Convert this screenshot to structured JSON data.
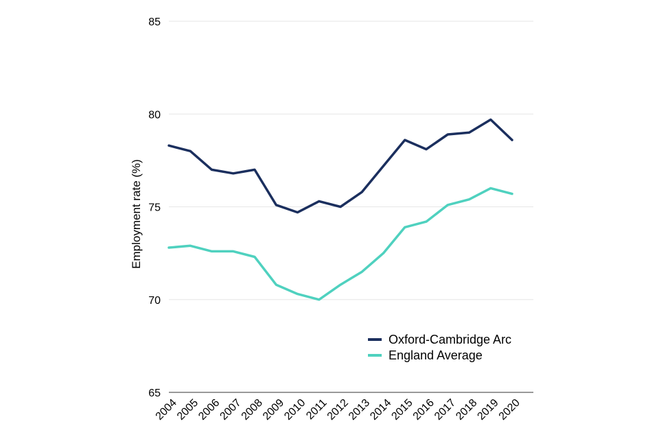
{
  "chart_data": {
    "type": "line",
    "title": "",
    "xlabel": "",
    "ylabel": "Employment rate (%)",
    "ylim": [
      65,
      85
    ],
    "yticks": [
      65,
      70,
      75,
      80,
      85
    ],
    "grid": true,
    "legend_position": "bottom-right",
    "categories": [
      "2004",
      "2005",
      "2006",
      "2007",
      "2008",
      "2009",
      "2010",
      "2011",
      "2012",
      "2013",
      "2014",
      "2015",
      "2016",
      "2017",
      "2018",
      "2019",
      "2020"
    ],
    "series": [
      {
        "name": "Oxford-Cambridge Arc",
        "color": "#1b2f5e",
        "values": [
          78.3,
          78.0,
          77.0,
          76.8,
          77.0,
          75.1,
          74.7,
          75.3,
          75.0,
          75.8,
          77.2,
          78.6,
          78.1,
          78.9,
          79.0,
          79.7,
          78.6
        ]
      },
      {
        "name": "England Average",
        "color": "#4fd1bf",
        "values": [
          72.8,
          72.9,
          72.6,
          72.6,
          72.3,
          70.8,
          70.3,
          70.0,
          70.8,
          71.5,
          72.5,
          73.9,
          74.2,
          75.1,
          75.4,
          76.0,
          75.7
        ]
      }
    ]
  }
}
